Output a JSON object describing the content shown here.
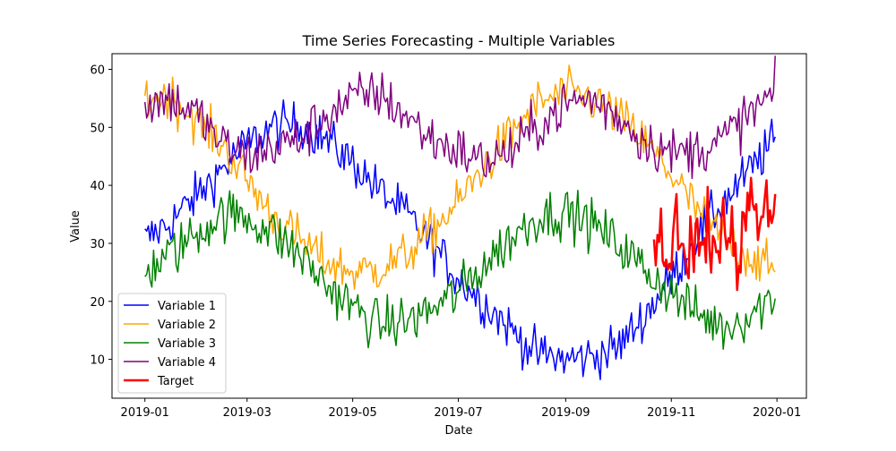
{
  "chart_data": {
    "type": "line",
    "title": "Time Series Forecasting - Multiple Variables",
    "xlabel": "Date",
    "ylabel": "Value",
    "xlim": [
      "2018-12-13",
      "2020-01-18"
    ],
    "ylim": [
      3.3,
      62.7
    ],
    "x_ticks": [
      "2019-01",
      "2019-03",
      "2019-05",
      "2019-07",
      "2019-09",
      "2019-11",
      "2020-01"
    ],
    "y_ticks": [
      10,
      20,
      30,
      40,
      50,
      60
    ],
    "grid": false,
    "legend_position": "lower-left",
    "series": [
      {
        "name": "Variable 1",
        "color": "#0000ff",
        "line_width": 1.5,
        "x": [
          "2019-01-01",
          "2019-01-15",
          "2019-02-01",
          "2019-02-15",
          "2019-03-01",
          "2019-03-15",
          "2019-04-01",
          "2019-04-15",
          "2019-05-01",
          "2019-05-15",
          "2019-06-01",
          "2019-06-15",
          "2019-07-01",
          "2019-07-15",
          "2019-08-01",
          "2019-08-15",
          "2019-09-01",
          "2019-09-15",
          "2019-10-01",
          "2019-10-15",
          "2019-11-01",
          "2019-11-15",
          "2019-12-01",
          "2019-12-15",
          "2019-12-31"
        ],
        "y": [
          30.5,
          33.5,
          38.5,
          43.0,
          47.0,
          50.0,
          50.5,
          48.0,
          44.0,
          39.5,
          35.0,
          30.0,
          24.0,
          20.0,
          15.0,
          11.0,
          10.0,
          10.5,
          12.0,
          17.0,
          24.0,
          31.0,
          37.0,
          42.0,
          48.0
        ]
      },
      {
        "name": "Variable 2",
        "color": "#ffa500",
        "line_width": 1.5,
        "x": [
          "2019-01-01",
          "2019-01-15",
          "2019-02-01",
          "2019-02-15",
          "2019-03-01",
          "2019-03-15",
          "2019-04-01",
          "2019-04-15",
          "2019-05-01",
          "2019-05-15",
          "2019-06-01",
          "2019-06-15",
          "2019-07-01",
          "2019-07-15",
          "2019-08-01",
          "2019-08-15",
          "2019-09-01",
          "2019-09-15",
          "2019-10-01",
          "2019-10-15",
          "2019-11-01",
          "2019-11-15",
          "2019-12-01",
          "2019-12-15",
          "2019-12-31"
        ],
        "y": [
          55.0,
          55.5,
          51.0,
          47.0,
          41.0,
          35.0,
          30.5,
          27.0,
          25.0,
          25.5,
          28.0,
          32.0,
          37.0,
          43.0,
          49.0,
          54.0,
          56.0,
          55.0,
          52.0,
          48.0,
          42.0,
          36.0,
          31.0,
          28.0,
          25.0
        ]
      },
      {
        "name": "Variable 3",
        "color": "#008000",
        "line_width": 1.5,
        "x": [
          "2019-01-01",
          "2019-01-15",
          "2019-02-01",
          "2019-02-15",
          "2019-03-01",
          "2019-03-15",
          "2019-04-01",
          "2019-04-15",
          "2019-05-01",
          "2019-05-15",
          "2019-06-01",
          "2019-06-15",
          "2019-07-01",
          "2019-07-15",
          "2019-08-01",
          "2019-08-15",
          "2019-09-01",
          "2019-09-15",
          "2019-10-01",
          "2019-10-15",
          "2019-11-01",
          "2019-11-15",
          "2019-12-01",
          "2019-12-15",
          "2019-12-31"
        ],
        "y": [
          25.0,
          28.0,
          32.0,
          35.0,
          34.5,
          32.0,
          28.0,
          23.0,
          19.0,
          16.0,
          16.5,
          18.5,
          21.5,
          26.0,
          31.0,
          34.5,
          35.5,
          33.5,
          30.0,
          26.0,
          21.5,
          18.0,
          15.5,
          17.5,
          21.0
        ]
      },
      {
        "name": "Variable 4",
        "color": "#800080",
        "line_width": 1.5,
        "x": [
          "2019-01-01",
          "2019-01-15",
          "2019-02-01",
          "2019-02-15",
          "2019-03-01",
          "2019-03-15",
          "2019-04-01",
          "2019-04-15",
          "2019-05-01",
          "2019-05-15",
          "2019-06-01",
          "2019-06-15",
          "2019-07-01",
          "2019-07-15",
          "2019-08-01",
          "2019-08-15",
          "2019-09-01",
          "2019-09-15",
          "2019-10-01",
          "2019-10-15",
          "2019-11-01",
          "2019-11-15",
          "2019-12-01",
          "2019-12-15",
          "2019-12-31"
        ],
        "y": [
          54.0,
          55.0,
          52.0,
          47.0,
          45.0,
          46.5,
          48.0,
          52.0,
          55.0,
          56.0,
          52.0,
          48.0,
          46.0,
          44.0,
          46.0,
          50.0,
          54.0,
          55.0,
          52.0,
          48.0,
          45.5,
          46.0,
          48.0,
          52.0,
          56.0
        ]
      },
      {
        "name": "Target",
        "color": "#ff0000",
        "line_width": 2.5,
        "x": [
          "2019-10-22",
          "2019-10-26",
          "2019-10-30",
          "2019-11-03",
          "2019-11-07",
          "2019-11-11",
          "2019-11-15",
          "2019-11-19",
          "2019-11-23",
          "2019-11-27",
          "2019-12-01",
          "2019-12-05",
          "2019-12-09",
          "2019-12-13",
          "2019-12-17",
          "2019-12-21",
          "2019-12-25",
          "2019-12-29",
          "2019-12-31"
        ],
        "y": [
          27.5,
          32.5,
          24.0,
          34.0,
          28.0,
          30.0,
          32.5,
          27.0,
          34.5,
          28.5,
          36.5,
          30.0,
          25.0,
          34.0,
          41.0,
          33.0,
          38.5,
          35.5,
          38.5
        ]
      }
    ]
  }
}
